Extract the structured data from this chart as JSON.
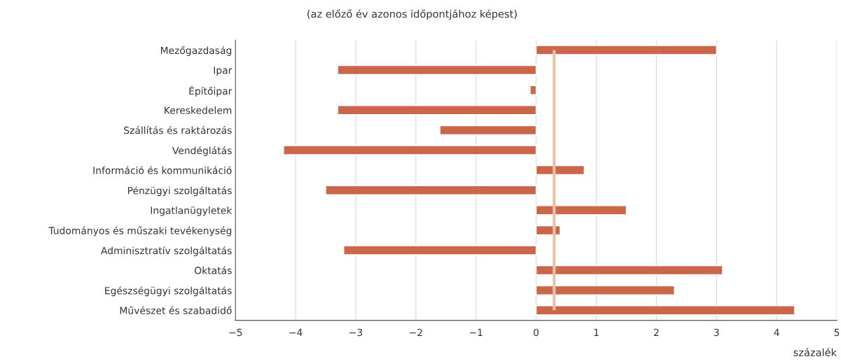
{
  "chart_data": {
    "type": "bar",
    "orientation": "horizontal",
    "title": "(az előző év azonos időpontjához képest)",
    "xlabel": "százalék",
    "categories": [
      "Mezőgazdaság",
      "Ipar",
      "Építőipar",
      "Kereskedelem",
      "Szállítás és raktározás",
      "Vendéglátás",
      "Információ és kommunikáció",
      "Pénzügyi szolgáltatás",
      "Ingatlanügyletek",
      "Tudományos és műszaki tevékenység",
      "Adminisztratív szolgáltatás",
      "Oktatás",
      "Egészségügyi szolgáltatás",
      "Művészet és szabadidő"
    ],
    "values": [
      3.0,
      -3.3,
      -0.1,
      -3.3,
      -1.6,
      -4.2,
      0.8,
      -3.5,
      1.5,
      0.4,
      -3.2,
      3.1,
      2.3,
      4.3
    ],
    "color": "#cc664a",
    "xlim": [
      -5,
      5
    ],
    "xticks": [
      {
        "value": -5,
        "label": "−5"
      },
      {
        "value": -4,
        "label": "−4"
      },
      {
        "value": -3,
        "label": "−3"
      },
      {
        "value": -2,
        "label": "−2"
      },
      {
        "value": -1,
        "label": "−1"
      },
      0,
      1,
      2,
      3,
      4,
      5
    ],
    "ref_lines": [
      {
        "axis": "x",
        "value": 0.3,
        "color": "#e8c3a6"
      }
    ],
    "grid": "x",
    "legend": false
  }
}
